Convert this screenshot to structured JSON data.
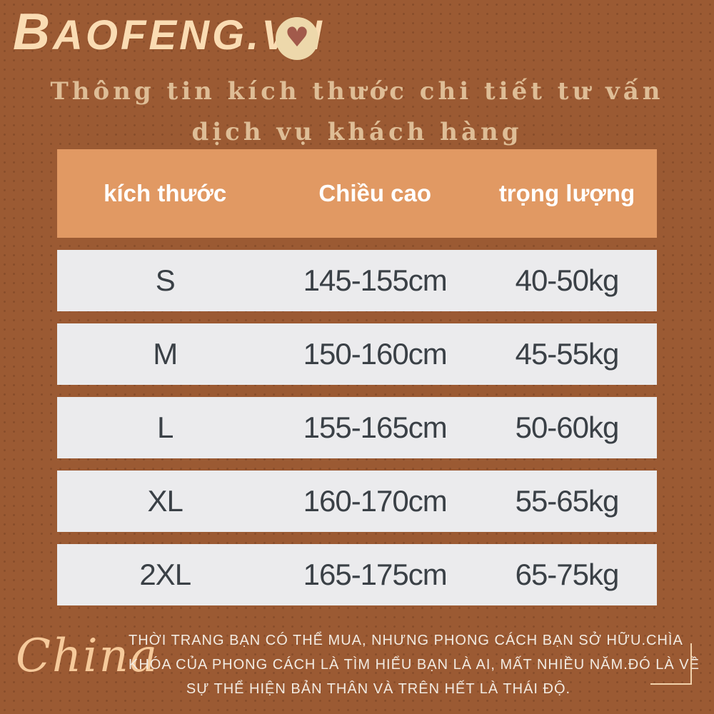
{
  "brand": {
    "logo_text": "BAOFENG.VN",
    "heart_icon": "heart",
    "logo_color": "#FADCB3",
    "badge_bg": "#EDD8AB",
    "heart_color": "#A25A4B"
  },
  "title": {
    "line1": "Thông tin kích thước chi tiết tư vấn",
    "line2": "dịch vụ khách hàng"
  },
  "chart_data": {
    "type": "table",
    "columns": [
      "kích thước",
      "Chiều cao",
      "trọng lượng"
    ],
    "rows": [
      {
        "size": "S",
        "height": "145-155cm",
        "weight": "40-50kg"
      },
      {
        "size": "M",
        "height": "150-160cm",
        "weight": "45-55kg"
      },
      {
        "size": "L",
        "height": "155-165cm",
        "weight": "50-60kg"
      },
      {
        "size": "XL",
        "height": "160-170cm",
        "weight": "55-65kg"
      },
      {
        "size": "2XL",
        "height": "165-175cm",
        "weight": "65-75kg"
      }
    ]
  },
  "footer": {
    "watermark": "China",
    "line1": "THỜI TRANG BẠN CÓ THỂ MUA, NHƯNG PHONG CÁCH BẠN SỞ HỮU.CHÌA",
    "line2": "KHÓA CỦA PHONG CÁCH LÀ TÌM HIỂU BẠN LÀ AI, MẤT NHIỀU NĂM.ĐÓ LÀ VỀ",
    "line3": "SỰ THỂ HIỆN BẢN THÂN VÀ TRÊN HẾT LÀ THÁI ĐỘ."
  },
  "colors": {
    "background": "#9B5A33",
    "dot": "#6E3E1C",
    "header_bg": "#E19963",
    "header_text": "#FFFFFF",
    "row_bg": "#EBEBED",
    "row_text": "#3A4046",
    "title_text": "#E4C59E",
    "accent_cream": "#F3D3AC"
  }
}
